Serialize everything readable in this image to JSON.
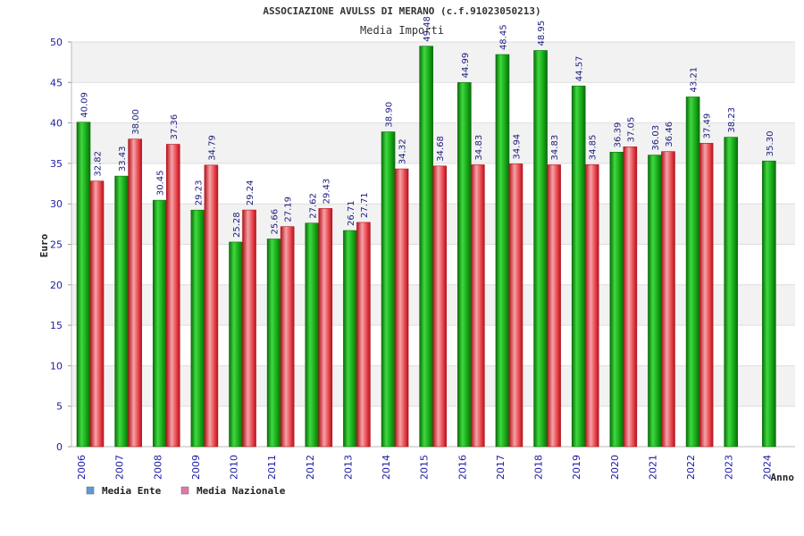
{
  "chart_data": {
    "type": "bar",
    "title": "ASSOCIAZIONE AVULSS DI MERANO (c.f.91023050213)",
    "subtitle": "Media Importi",
    "xlabel": "Anno",
    "ylabel": "Euro",
    "ylim": [
      0,
      50
    ],
    "yticks": [
      "0",
      "5",
      "10",
      "15",
      "20",
      "25",
      "30",
      "35",
      "40",
      "45",
      "50"
    ],
    "grid": true,
    "legend_position": "bottom-left",
    "categories": [
      "2006",
      "2007",
      "2008",
      "2009",
      "2010",
      "2011",
      "2012",
      "2013",
      "2014",
      "2015",
      "2016",
      "2017",
      "2018",
      "2019",
      "2020",
      "2021",
      "2022",
      "2023",
      "2024"
    ],
    "series": [
      {
        "name": "Media Ente",
        "legend_color": "#5b9bd5",
        "bar_color": "#1fae1f",
        "values": [
          40.09,
          33.43,
          30.45,
          29.23,
          25.28,
          25.66,
          27.62,
          26.71,
          38.9,
          49.48,
          44.99,
          48.45,
          48.95,
          44.57,
          36.39,
          36.03,
          43.21,
          38.23,
          35.3
        ],
        "labels": [
          "40.09",
          "33.43",
          "30.45",
          "29.23",
          "25.28",
          "25.66",
          "27.62",
          "26.71",
          "38.90",
          "49.48",
          "44.99",
          "48.45",
          "48.95",
          "44.57",
          "36.39",
          "36.03",
          "43.21",
          "38.23",
          "35.30"
        ]
      },
      {
        "name": "Media Nazionale",
        "legend_color": "#e377a8",
        "bar_color": "#e8434b",
        "values": [
          32.82,
          38.0,
          37.36,
          34.79,
          29.24,
          27.19,
          29.43,
          27.71,
          34.32,
          34.68,
          34.83,
          34.94,
          34.83,
          34.85,
          37.05,
          36.46,
          37.49,
          null,
          null
        ],
        "labels": [
          "32.82",
          "38.00",
          "37.36",
          "34.79",
          "29.24",
          "27.19",
          "29.43",
          "27.71",
          "34.32",
          "34.68",
          "34.83",
          "34.94",
          "34.83",
          "34.85",
          "37.05",
          "36.46",
          "37.49",
          null,
          null
        ]
      }
    ]
  }
}
